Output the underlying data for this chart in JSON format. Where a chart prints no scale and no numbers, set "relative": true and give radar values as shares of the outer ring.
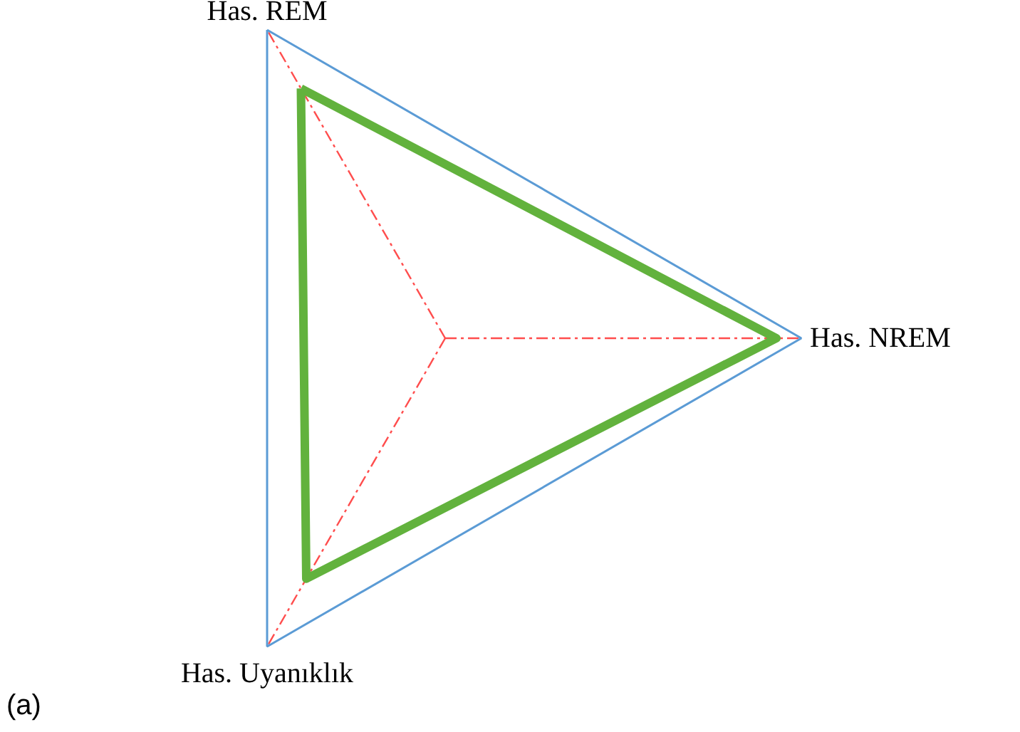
{
  "chart_data": {
    "type": "radar",
    "relative": true,
    "categories": [
      "Has. REM",
      "Has. NREM",
      "Has. Uyanıklık"
    ],
    "series": [
      {
        "color": "#62b23d",
        "values": [
          0.81,
          0.93,
          0.78
        ]
      }
    ],
    "annotations": [
      "(a)"
    ]
  }
}
